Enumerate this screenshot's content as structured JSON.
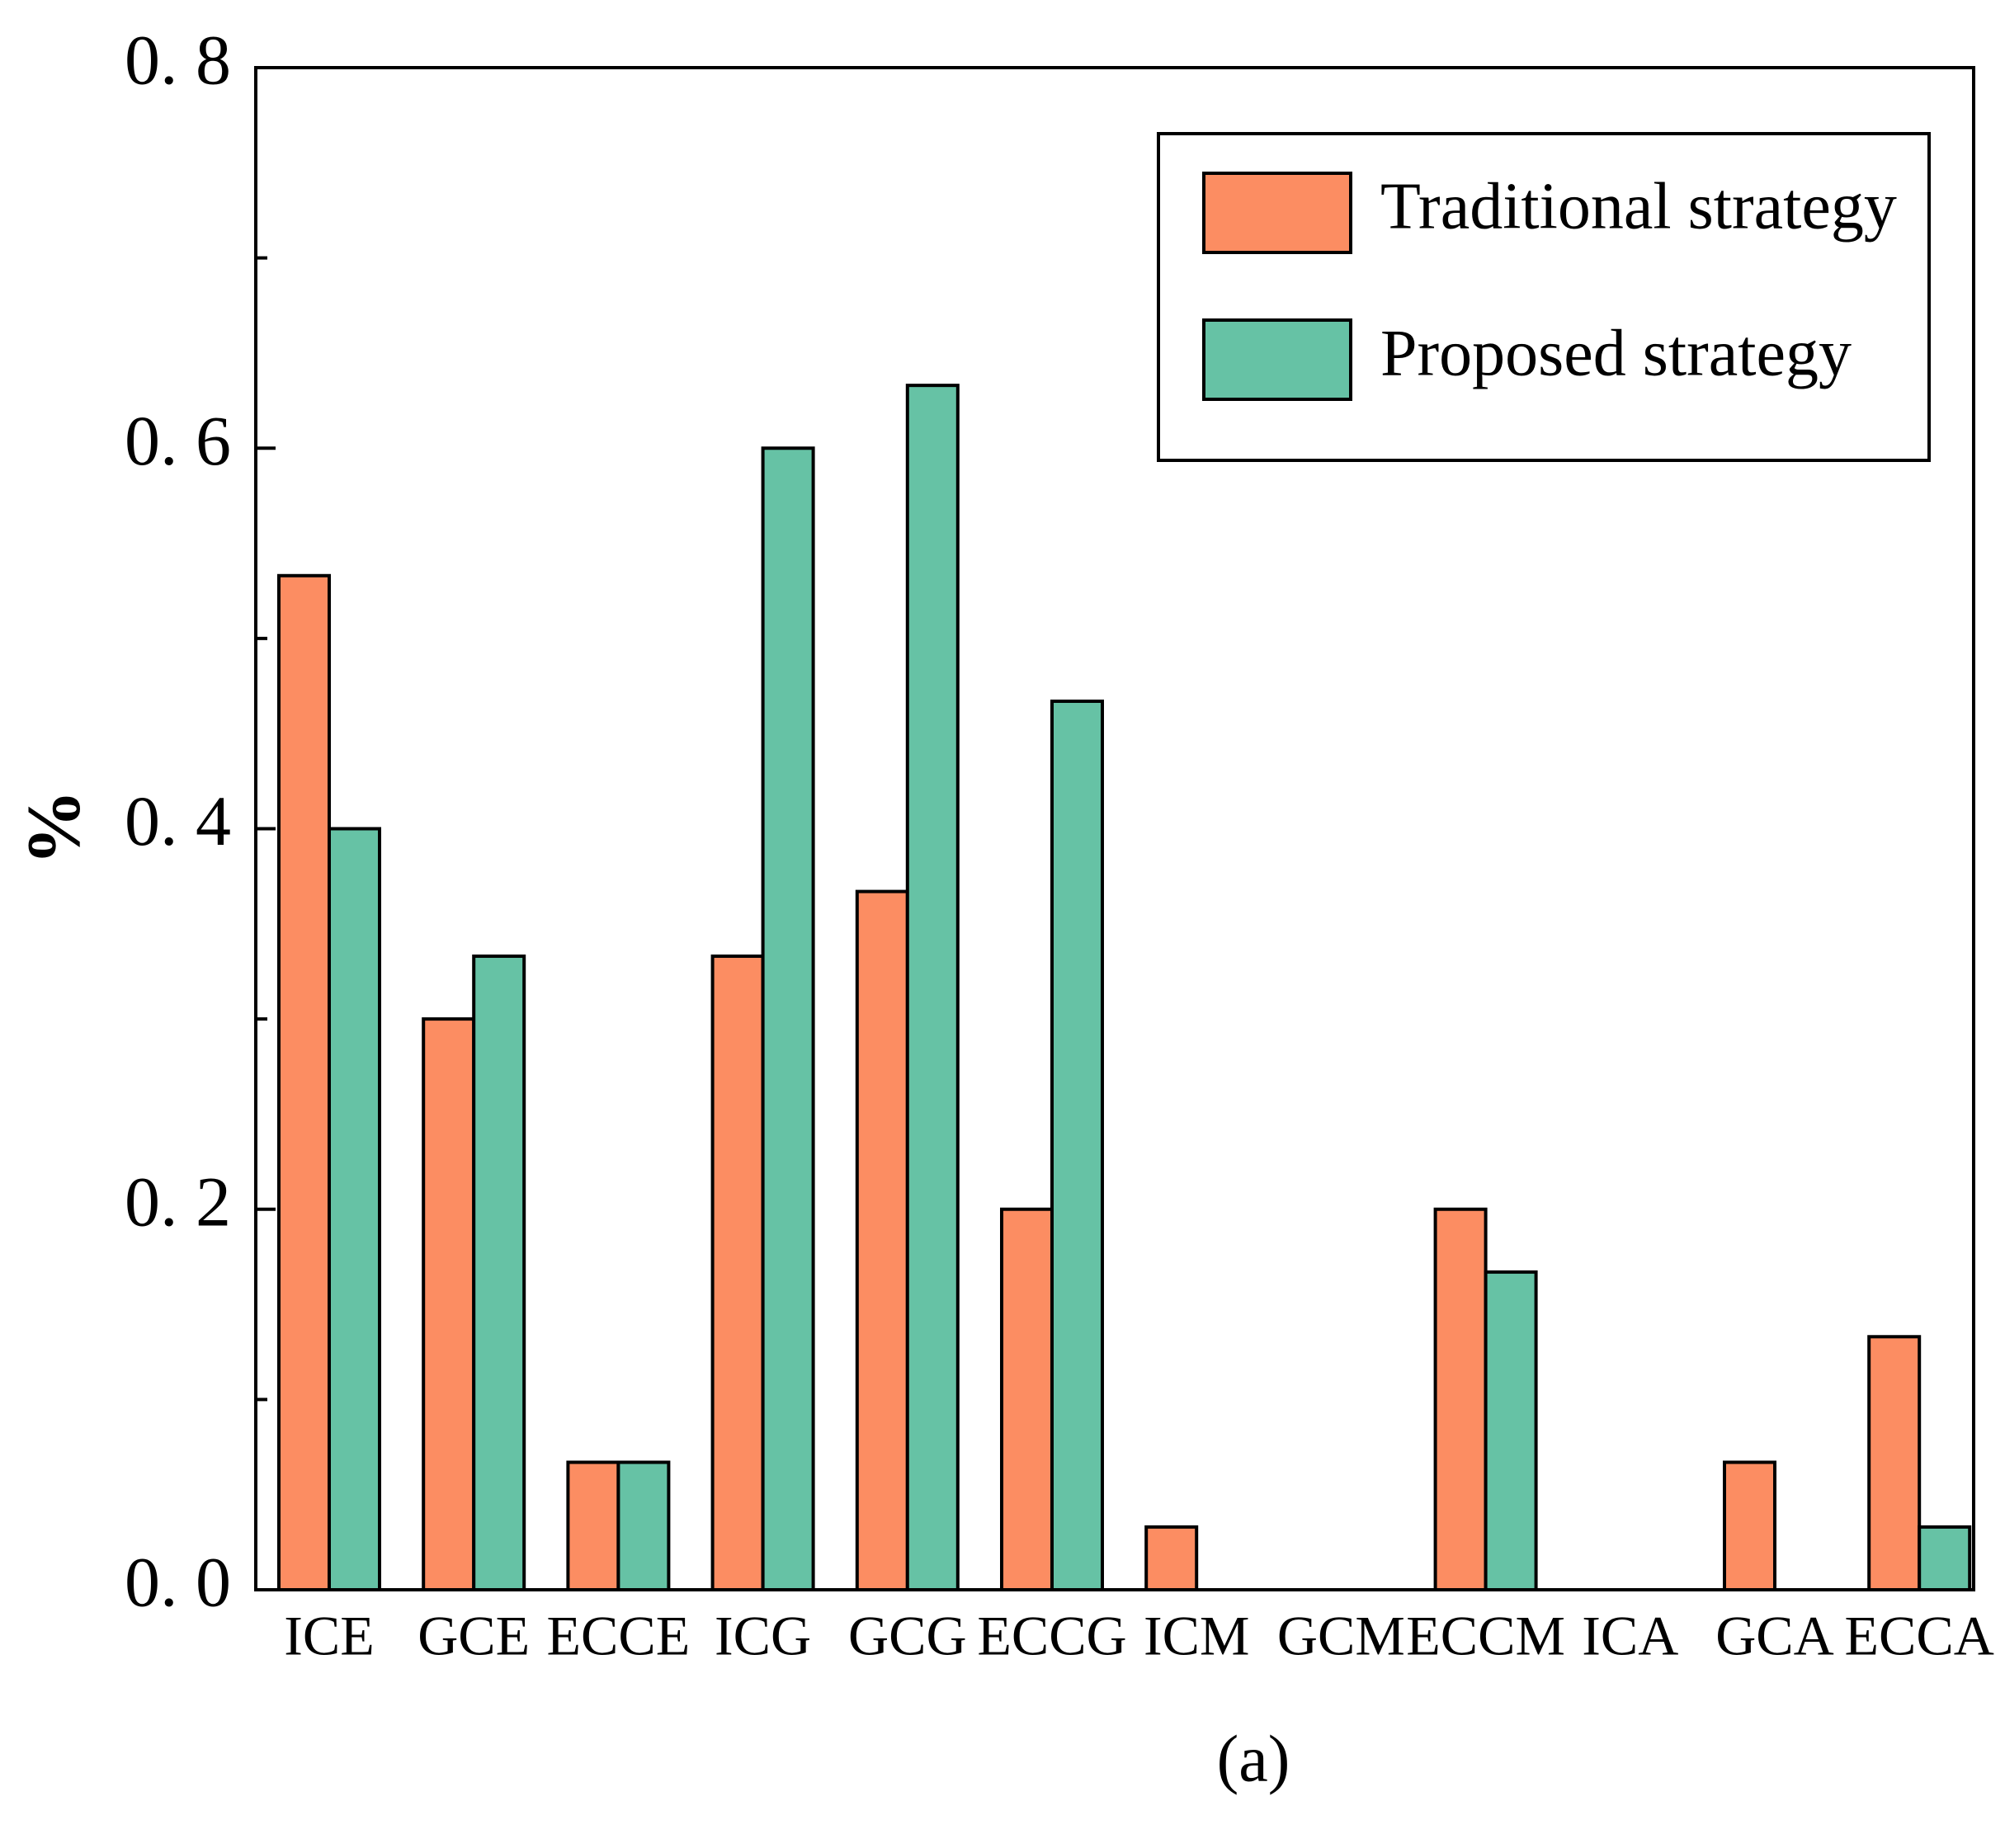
{
  "chart_data": {
    "type": "bar",
    "categories": [
      "ICE",
      "GCE",
      "ECCE",
      "ICG",
      "GCG",
      "ECCG",
      "ICM",
      "GCM",
      "ECCM",
      "ICA",
      "GCA",
      "ECCA"
    ],
    "series": [
      {
        "name": "Traditional strategy",
        "color": "#FC8D62",
        "values": [
          0.533,
          0.3,
          0.067,
          0.333,
          0.367,
          0.2,
          0.033,
          0,
          0.2,
          0,
          0.067,
          0.133
        ]
      },
      {
        "name": "Proposed strategy",
        "color": "#66C2A5",
        "values": [
          0.4,
          0.333,
          0.067,
          0.6,
          0.633,
          0.467,
          0,
          0,
          0.167,
          0,
          0,
          0.033
        ]
      }
    ],
    "title": "",
    "xlabel": "",
    "ylabel": "%",
    "ylim": [
      0,
      0.8
    ],
    "yticks": [
      {
        "value": 0.0,
        "label": "0. 0"
      },
      {
        "value": 0.2,
        "label": "0. 2"
      },
      {
        "value": 0.4,
        "label": "0. 4"
      },
      {
        "value": 0.6,
        "label": "0. 6"
      },
      {
        "value": 0.8,
        "label": "0. 8"
      }
    ],
    "minor_yticks": [
      0.1,
      0.3,
      0.5,
      0.7
    ],
    "legend_position": "top-right",
    "grid": false,
    "caption": "(a)"
  }
}
